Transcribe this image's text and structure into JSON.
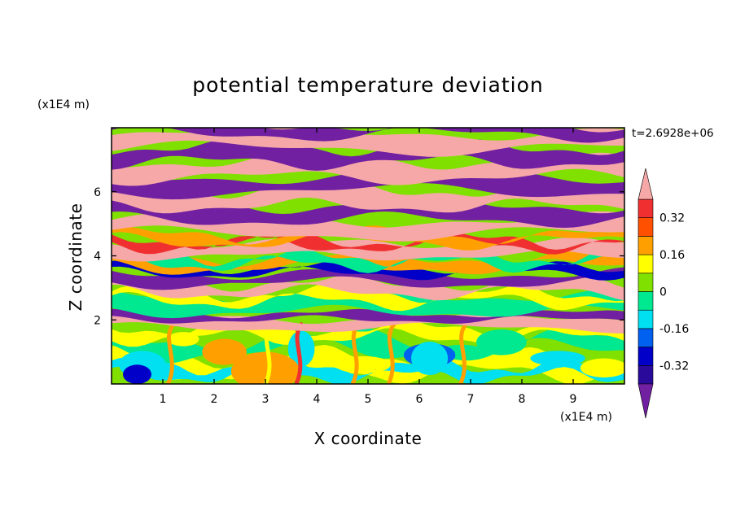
{
  "chart_data": {
    "type": "heatmap",
    "title": "potential temperature deviation",
    "xlabel": "X coordinate",
    "ylabel": "Z coordinate",
    "x_unit": "(x1E4 m)",
    "y_unit": "(x1E4 m)",
    "time_label": "t=2.6928e+06",
    "xlim": [
      0,
      10
    ],
    "ylim": [
      0,
      8
    ],
    "x_ticks": [
      "1",
      "2",
      "3",
      "4",
      "5",
      "6",
      "7",
      "8",
      "9"
    ],
    "y_ticks": [
      "2",
      "4",
      "6"
    ],
    "colorbar": {
      "levels": [
        -0.4,
        -0.32,
        -0.24,
        -0.16,
        -0.08,
        0,
        0.08,
        0.16,
        0.24,
        0.32,
        0.4
      ],
      "labels": [
        "0.32",
        "0.16",
        "0",
        "-0.16",
        "-0.32"
      ],
      "colors": [
        "#7020a0",
        "#2a0a9a",
        "#0000c8",
        "#0060f0",
        "#00e0f0",
        "#00e890",
        "#80e000",
        "#ffff00",
        "#ffa000",
        "#ff5000",
        "#f03030",
        "#f6a8a8"
      ],
      "extend": "both"
    },
    "layers": [
      {
        "zmin": 5.0,
        "zmax": 8.0,
        "pattern": "alternating pink and purple bands",
        "colors": [
          "#f6a8a8",
          "#7020a0"
        ]
      },
      {
        "zmin": 4.0,
        "zmax": 5.0,
        "pattern": "pink with orange/red/yellow streaks",
        "colors": [
          "#f6a8a8",
          "#ffa000",
          "#f03030"
        ]
      },
      {
        "zmin": 2.0,
        "zmax": 4.0,
        "pattern": "mixed bands purple, blue, green, yellow, orange, pink",
        "colors": [
          "#7020a0",
          "#0000c8",
          "#00e890",
          "#80e000",
          "#ffff00",
          "#ffa000",
          "#f6a8a8"
        ]
      },
      {
        "zmin": 0.0,
        "zmax": 2.0,
        "pattern": "green/yellow/cyan turbulent eddies with blue cores",
        "colors": [
          "#80e000",
          "#ffff00",
          "#00e0f0",
          "#0060f0",
          "#ffa000"
        ]
      }
    ]
  }
}
